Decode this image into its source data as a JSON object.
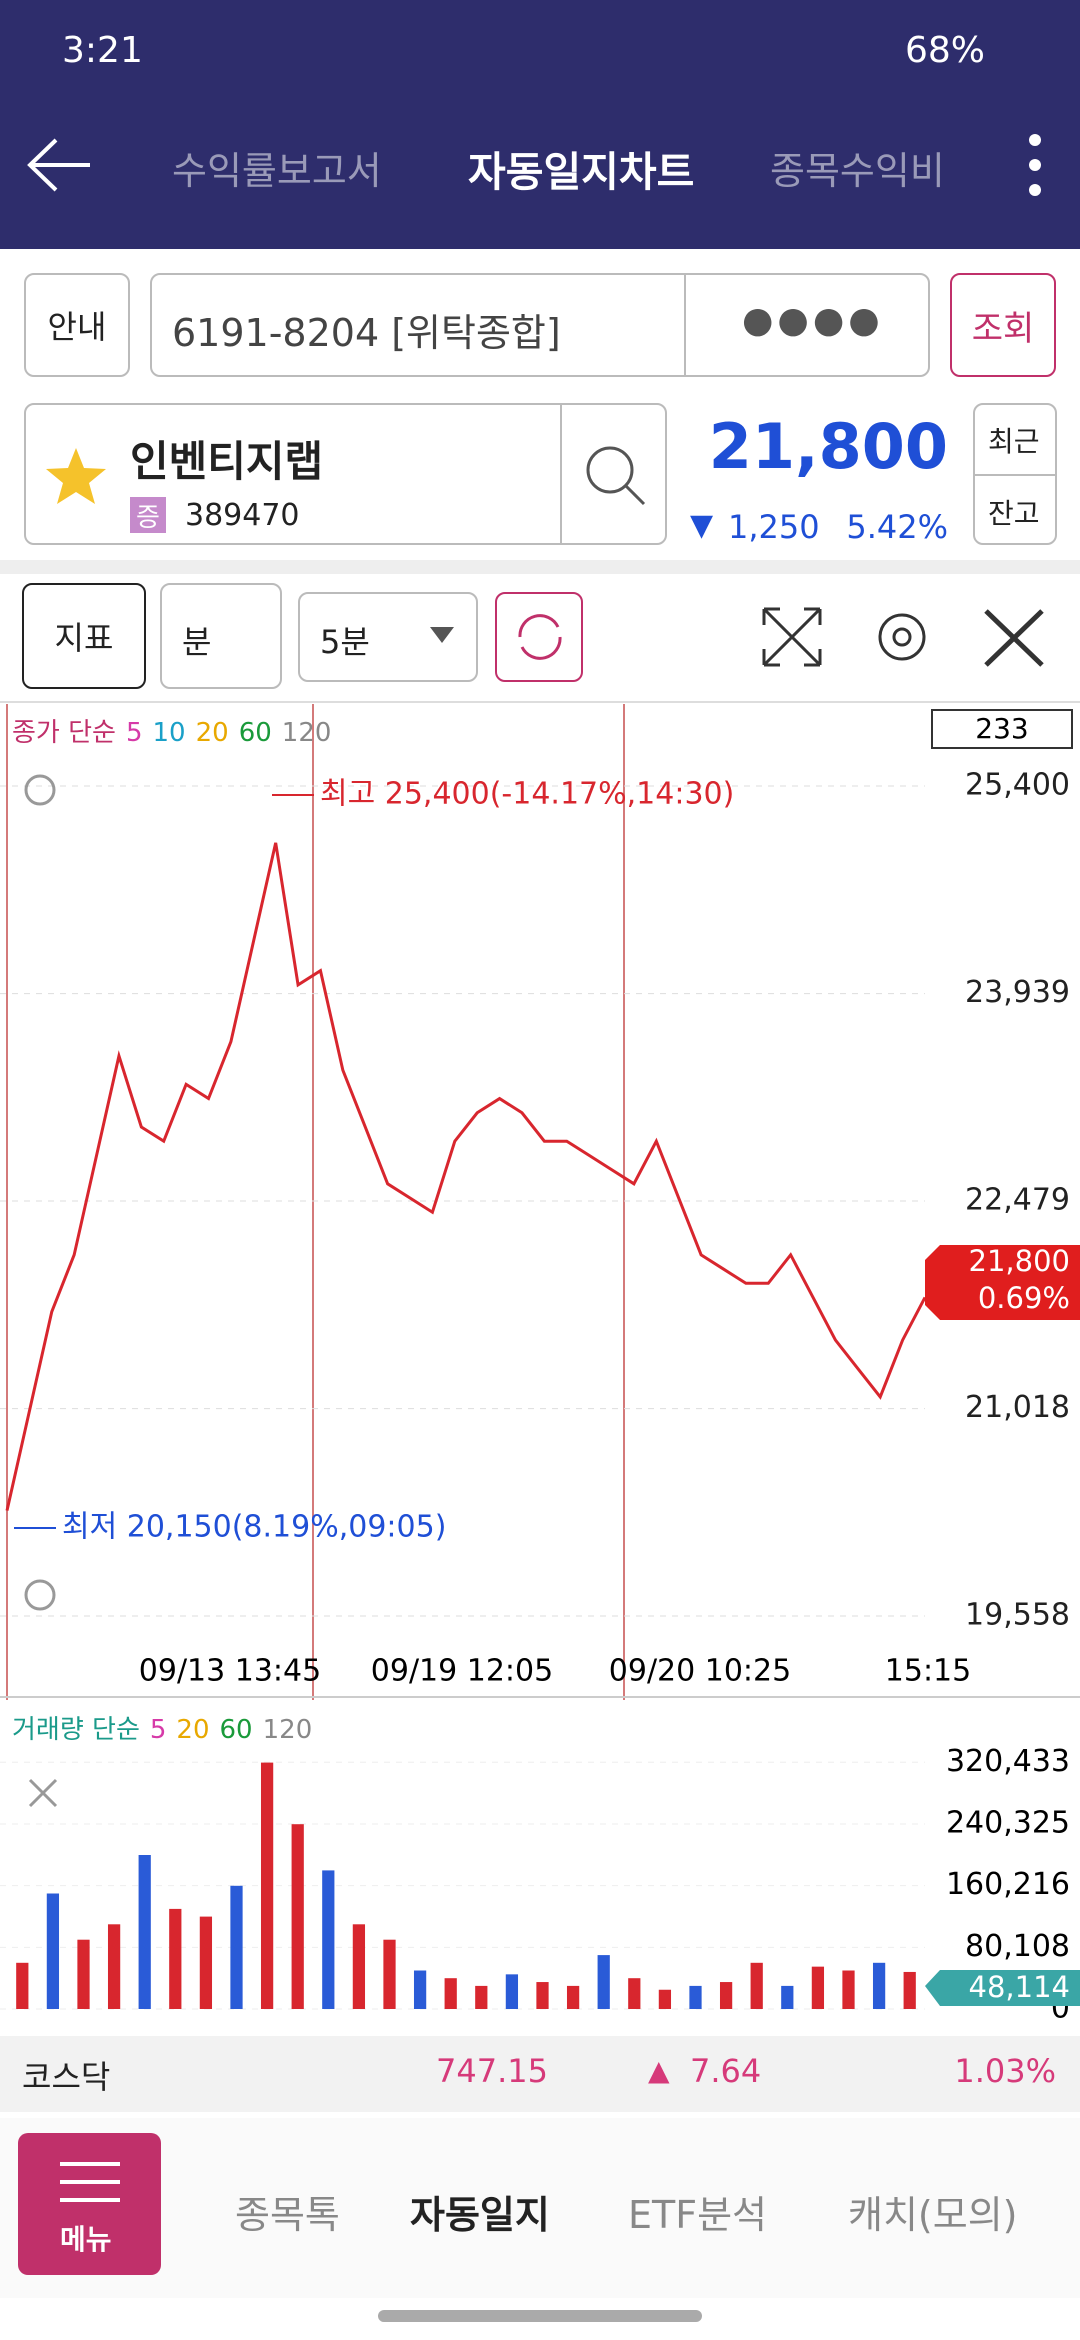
{
  "status_bar": {
    "time": "3:21",
    "battery": "68%"
  },
  "header": {
    "tabs": [
      "수익률보고서",
      "자동일지차트",
      "종목수익비"
    ]
  },
  "account": {
    "guide": "안내",
    "number": "6191-8204 [위탁종합]",
    "password": "●●●●",
    "query": "조회"
  },
  "stock": {
    "name": "인벤티지랩",
    "badge": "증",
    "code": "389470",
    "price": "21,800",
    "change": "1,250",
    "change_pct": "5.42%",
    "recent": "최근",
    "balance": "잔고"
  },
  "toolbar": {
    "indicator": "지표",
    "unit": "분",
    "period": "5분"
  },
  "chart_data": [
    {
      "type": "line",
      "legend_title": "종가 단순",
      "moving_averages": [
        {
          "name": "5",
          "color": "#d63aa8"
        },
        {
          "name": "10",
          "color": "#1aa0c8"
        },
        {
          "name": "20",
          "color": "#e8a800"
        },
        {
          "name": "60",
          "color": "#1a9a3a"
        },
        {
          "name": "120",
          "color": "#888888"
        }
      ],
      "count_box": "233",
      "high_annotation": "최고 25,400(-14.17%,14:30)",
      "low_annotation": "최저 20,150(8.19%,09:05)",
      "current_price": "21,800",
      "current_pct": "0.69%",
      "x_labels": [
        "09/13 13:45",
        "09/19 12:05",
        "09/20 10:25",
        "15:15"
      ],
      "ylim": [
        19333,
        25977
      ],
      "yticks": [
        {
          "value": 25400,
          "label": "25,400"
        },
        {
          "value": 23939,
          "label": "23,939"
        },
        {
          "value": 22479,
          "label": "22,479"
        },
        {
          "value": 21018,
          "label": "21,018"
        },
        {
          "value": 19558,
          "label": "19,558"
        }
      ],
      "grid": true,
      "series": [
        {
          "name": "종가",
          "color": "#d8262e",
          "values": [
            20300,
            21000,
            21700,
            22100,
            22800,
            23500,
            23000,
            22900,
            23300,
            23200,
            23600,
            24300,
            25000,
            24000,
            24100,
            23400,
            23000,
            22600,
            22500,
            22400,
            22900,
            23100,
            23200,
            23100,
            22900,
            22900,
            22800,
            22700,
            22600,
            22900,
            22500,
            22100,
            22000,
            21900,
            21900,
            22100,
            21800,
            21500,
            21300,
            21100,
            21500,
            21800
          ]
        }
      ]
    },
    {
      "type": "bar",
      "legend_title": "거래량 단순",
      "moving_averages": [
        {
          "name": "5",
          "color": "#d63aa8"
        },
        {
          "name": "20",
          "color": "#e8a800"
        },
        {
          "name": "60",
          "color": "#1a9a3a"
        },
        {
          "name": "120",
          "color": "#888888"
        }
      ],
      "current_volume": "48,114",
      "ylim": [
        0,
        400000
      ],
      "yticks": [
        {
          "value": 320433,
          "label": "320,433"
        },
        {
          "value": 240325,
          "label": "240,325"
        },
        {
          "value": 160216,
          "label": "160,216"
        },
        {
          "value": 80108,
          "label": "80,108"
        },
        0
      ],
      "series": [
        {
          "name": "거래량",
          "color": "#d8262e",
          "values": [
            60000,
            150000,
            90000,
            110000,
            200000,
            130000,
            120000,
            160000,
            320000,
            240000,
            180000,
            110000,
            90000,
            50000,
            40000,
            30000,
            45000,
            35000,
            30000,
            70000,
            40000,
            25000,
            30000,
            35000,
            60000,
            30000,
            55000,
            50000,
            60000,
            48114
          ]
        }
      ]
    }
  ],
  "market": {
    "name": "코스닥",
    "value": "747.15",
    "change": "7.64",
    "change_pct": "1.03%"
  },
  "nav": {
    "menu": "메뉴",
    "items": [
      "종목톡",
      "자동일지",
      "ETF분석",
      "캐치(모의)"
    ]
  }
}
